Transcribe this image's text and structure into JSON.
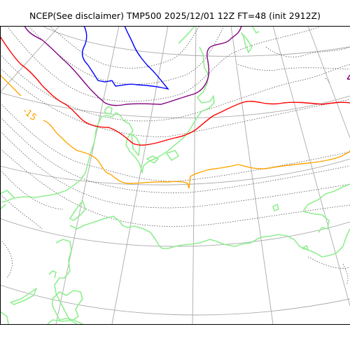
{
  "title": "NCEP(See disclaimer) TMP500 2025/12/01 12Z FT=48 (init 2912Z)",
  "map": {
    "colors": {
      "background": "#ffffff",
      "graticule": "#aaaaaa",
      "temperature_contours": "#555555",
      "coastline": "#90ee90",
      "isotherm_minus_15": "#ffa500",
      "isotherm_minus_20": "#ff0000",
      "isotherm_minus_25": "#800080",
      "isotherm_minus_30": "#0000ff"
    },
    "labels": {
      "isotherm_minus_15": "-15"
    }
  }
}
